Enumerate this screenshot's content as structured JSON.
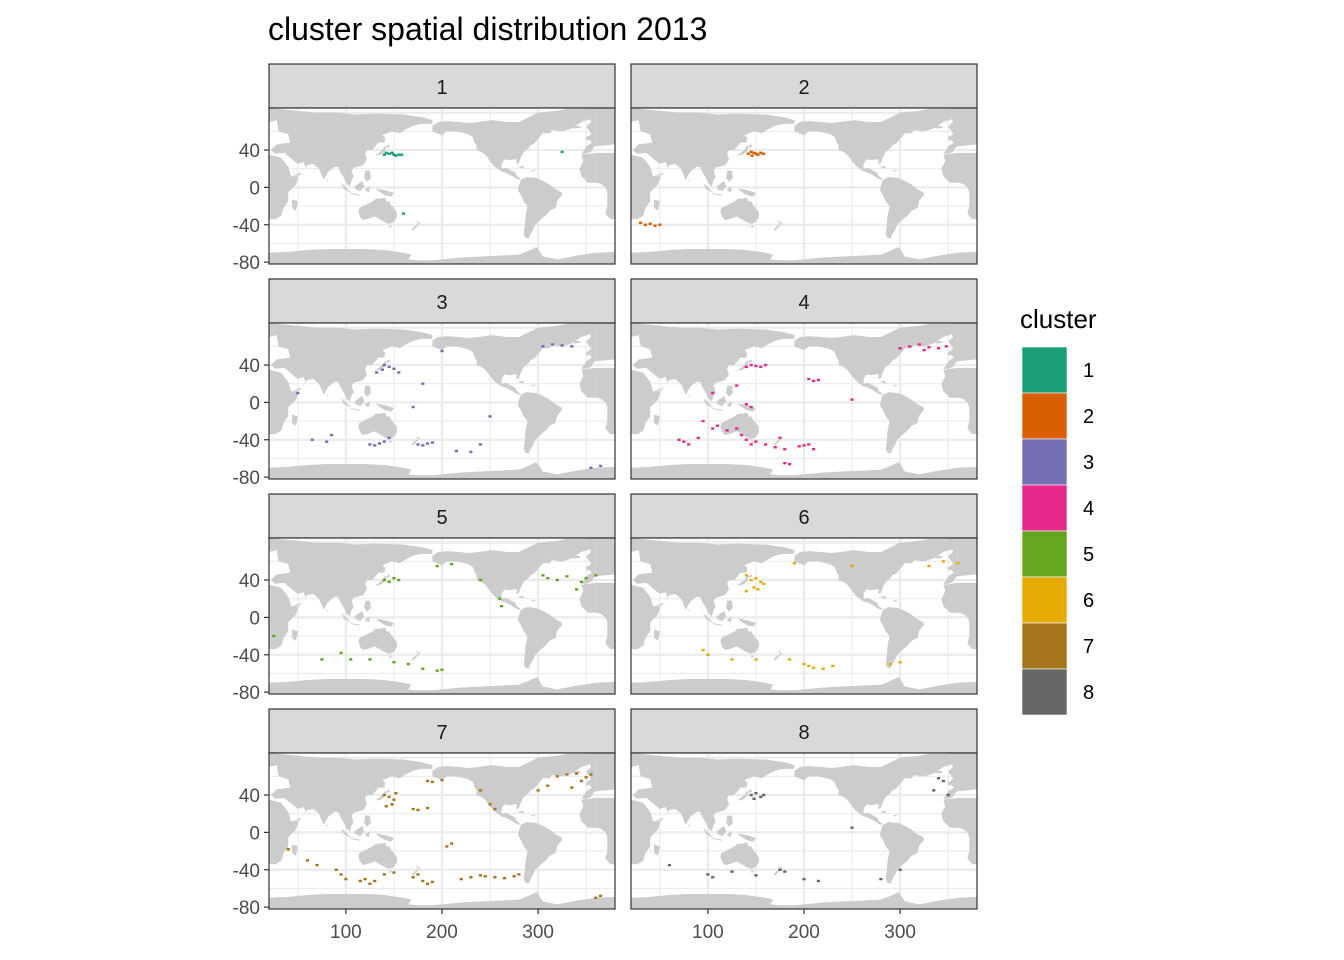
{
  "chart_data": {
    "type": "scatter",
    "title": "cluster spatial distribution 2013",
    "xlabel": "",
    "ylabel": "",
    "xlim": [
      20,
      380
    ],
    "ylim": [
      -82,
      85
    ],
    "x_ticks": [
      100,
      200,
      300
    ],
    "y_ticks": [
      40,
      0,
      -40,
      -80
    ],
    "y_tick_labels": [
      "40",
      "0",
      "-40",
      "-80"
    ],
    "x_tick_labels": [
      "100",
      "200",
      "300"
    ],
    "facet_by": "cluster",
    "facet_labels": [
      "1",
      "2",
      "3",
      "4",
      "5",
      "6",
      "7",
      "8"
    ],
    "grid": true,
    "background_map": "world land masses (light grey)",
    "legend": {
      "title": "cluster",
      "placement": "right",
      "entries": [
        {
          "label": "1",
          "color": "#1b9e77"
        },
        {
          "label": "2",
          "color": "#d95f02"
        },
        {
          "label": "3",
          "color": "#7570b3"
        },
        {
          "label": "4",
          "color": "#e7298a"
        },
        {
          "label": "5",
          "color": "#66a61e"
        },
        {
          "label": "6",
          "color": "#e6ab02"
        },
        {
          "label": "7",
          "color": "#a6761d"
        },
        {
          "label": "8",
          "color": "#666666"
        }
      ]
    },
    "series": [
      {
        "name": "1",
        "points": [
          [
            140,
            35
          ],
          [
            145,
            36
          ],
          [
            150,
            35
          ],
          [
            155,
            35
          ],
          [
            148,
            37
          ],
          [
            142,
            37
          ],
          [
            152,
            34
          ],
          [
            158,
            35
          ],
          [
            325,
            38
          ],
          [
            160,
            -28
          ]
        ]
      },
      {
        "name": "2",
        "points": [
          [
            142,
            36
          ],
          [
            145,
            38
          ],
          [
            148,
            37
          ],
          [
            150,
            36
          ],
          [
            152,
            35
          ],
          [
            155,
            37
          ],
          [
            158,
            36
          ],
          [
            146,
            34
          ],
          [
            30,
            -38
          ],
          [
            35,
            -40
          ],
          [
            40,
            -39
          ],
          [
            45,
            -41
          ],
          [
            50,
            -40
          ]
        ]
      },
      {
        "name": "3",
        "points": [
          [
            140,
            40
          ],
          [
            145,
            38
          ],
          [
            138,
            35
          ],
          [
            150,
            36
          ],
          [
            155,
            32
          ],
          [
            132,
            32
          ],
          [
            305,
            60
          ],
          [
            315,
            62
          ],
          [
            325,
            61
          ],
          [
            335,
            60
          ],
          [
            200,
            55
          ],
          [
            180,
            20
          ],
          [
            170,
            -5
          ],
          [
            250,
            -15
          ],
          [
            65,
            -40
          ],
          [
            80,
            -42
          ],
          [
            85,
            -35
          ],
          [
            125,
            -45
          ],
          [
            130,
            -46
          ],
          [
            135,
            -44
          ],
          [
            140,
            -42
          ],
          [
            145,
            -38
          ],
          [
            175,
            -45
          ],
          [
            180,
            -46
          ],
          [
            185,
            -44
          ],
          [
            190,
            -43
          ],
          [
            215,
            -52
          ],
          [
            230,
            -53
          ],
          [
            240,
            -45
          ],
          [
            50,
            10
          ],
          [
            355,
            -70
          ],
          [
            365,
            -68
          ]
        ]
      },
      {
        "name": "4",
        "points": [
          [
            140,
            38
          ],
          [
            145,
            40
          ],
          [
            150,
            39
          ],
          [
            155,
            38
          ],
          [
            160,
            40
          ],
          [
            205,
            25
          ],
          [
            210,
            23
          ],
          [
            215,
            24
          ],
          [
            300,
            58
          ],
          [
            310,
            60
          ],
          [
            320,
            62
          ],
          [
            330,
            59
          ],
          [
            340,
            58
          ],
          [
            325,
            56
          ],
          [
            348,
            60
          ],
          [
            105,
            10
          ],
          [
            130,
            18
          ],
          [
            145,
            -5
          ],
          [
            140,
            -2
          ],
          [
            95,
            -20
          ],
          [
            105,
            -28
          ],
          [
            110,
            -25
          ],
          [
            120,
            -30
          ],
          [
            130,
            -28
          ],
          [
            135,
            -35
          ],
          [
            140,
            -40
          ],
          [
            145,
            -45
          ],
          [
            150,
            -42
          ],
          [
            160,
            -45
          ],
          [
            170,
            -48
          ],
          [
            180,
            -50
          ],
          [
            195,
            -47
          ],
          [
            200,
            -46
          ],
          [
            205,
            -45
          ],
          [
            210,
            -50
          ],
          [
            175,
            -38
          ],
          [
            70,
            -40
          ],
          [
            75,
            -42
          ],
          [
            80,
            -45
          ],
          [
            90,
            -38
          ],
          [
            180,
            -65
          ],
          [
            185,
            -66
          ],
          [
            250,
            3
          ]
        ]
      },
      {
        "name": "5",
        "points": [
          [
            140,
            40
          ],
          [
            145,
            38
          ],
          [
            150,
            42
          ],
          [
            155,
            40
          ],
          [
            195,
            55
          ],
          [
            210,
            57
          ],
          [
            305,
            45
          ],
          [
            310,
            42
          ],
          [
            320,
            40
          ],
          [
            330,
            44
          ],
          [
            345,
            38
          ],
          [
            350,
            42
          ],
          [
            340,
            30
          ],
          [
            240,
            40
          ],
          [
            260,
            20
          ],
          [
            262,
            12
          ],
          [
            25,
            -20
          ],
          [
            95,
            -38
          ],
          [
            105,
            -45
          ],
          [
            125,
            -45
          ],
          [
            150,
            -48
          ],
          [
            165,
            -50
          ],
          [
            180,
            -55
          ],
          [
            195,
            -57
          ],
          [
            200,
            -56
          ],
          [
            75,
            -45
          ],
          [
            360,
            45
          ]
        ]
      },
      {
        "name": "6",
        "points": [
          [
            140,
            45
          ],
          [
            145,
            40
          ],
          [
            150,
            42
          ],
          [
            155,
            38
          ],
          [
            148,
            32
          ],
          [
            152,
            30
          ],
          [
            158,
            36
          ],
          [
            140,
            28
          ],
          [
            330,
            55
          ],
          [
            345,
            60
          ],
          [
            360,
            58
          ],
          [
            190,
            58
          ],
          [
            95,
            -35
          ],
          [
            100,
            -40
          ],
          [
            125,
            -45
          ],
          [
            150,
            -45
          ],
          [
            185,
            -45
          ],
          [
            200,
            -50
          ],
          [
            205,
            -52
          ],
          [
            210,
            -54
          ],
          [
            220,
            -55
          ],
          [
            230,
            -52
          ],
          [
            290,
            -50
          ],
          [
            300,
            -48
          ],
          [
            250,
            55
          ]
        ]
      },
      {
        "name": "7",
        "points": [
          [
            140,
            40
          ],
          [
            145,
            38
          ],
          [
            150,
            35
          ],
          [
            148,
            30
          ],
          [
            142,
            28
          ],
          [
            152,
            42
          ],
          [
            185,
            55
          ],
          [
            190,
            54
          ],
          [
            200,
            56
          ],
          [
            170,
            25
          ],
          [
            175,
            24
          ],
          [
            185,
            26
          ],
          [
            320,
            60
          ],
          [
            330,
            62
          ],
          [
            340,
            63
          ],
          [
            350,
            59
          ],
          [
            355,
            62
          ],
          [
            345,
            55
          ],
          [
            335,
            48
          ],
          [
            310,
            50
          ],
          [
            300,
            45
          ],
          [
            240,
            45
          ],
          [
            250,
            30
          ],
          [
            255,
            25
          ],
          [
            205,
            -15
          ],
          [
            210,
            -12
          ],
          [
            60,
            -30
          ],
          [
            70,
            -35
          ],
          [
            90,
            -40
          ],
          [
            95,
            -45
          ],
          [
            100,
            -50
          ],
          [
            115,
            -52
          ],
          [
            120,
            -50
          ],
          [
            125,
            -55
          ],
          [
            130,
            -52
          ],
          [
            140,
            -45
          ],
          [
            150,
            -43
          ],
          [
            170,
            -48
          ],
          [
            175,
            -45
          ],
          [
            180,
            -52
          ],
          [
            185,
            -55
          ],
          [
            190,
            -53
          ],
          [
            220,
            -50
          ],
          [
            230,
            -48
          ],
          [
            240,
            -46
          ],
          [
            245,
            -47
          ],
          [
            255,
            -48
          ],
          [
            265,
            -49
          ],
          [
            275,
            -47
          ],
          [
            280,
            -45
          ],
          [
            360,
            -70
          ],
          [
            365,
            -68
          ],
          [
            40,
            -18
          ]
        ]
      },
      {
        "name": "8",
        "points": [
          [
            145,
            40
          ],
          [
            150,
            42
          ],
          [
            155,
            38
          ],
          [
            148,
            36
          ],
          [
            158,
            40
          ],
          [
            340,
            58
          ],
          [
            345,
            55
          ],
          [
            335,
            45
          ],
          [
            350,
            40
          ],
          [
            100,
            -45
          ],
          [
            105,
            -48
          ],
          [
            125,
            -42
          ],
          [
            150,
            -46
          ],
          [
            175,
            -40
          ],
          [
            180,
            -42
          ],
          [
            200,
            -50
          ],
          [
            215,
            -52
          ],
          [
            280,
            -50
          ],
          [
            300,
            -40
          ],
          [
            60,
            -35
          ],
          [
            250,
            5
          ]
        ]
      }
    ]
  }
}
